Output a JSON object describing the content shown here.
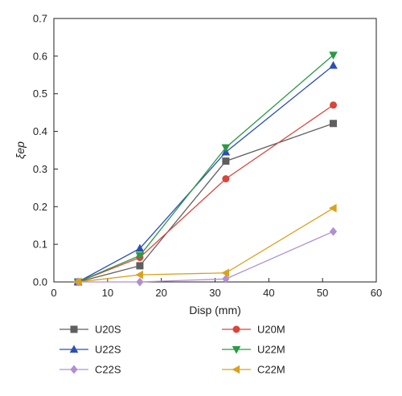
{
  "chart_data": {
    "type": "line",
    "xlabel": "Disp (mm)",
    "ylabel": "ξep",
    "xlim": [
      0,
      60
    ],
    "ylim": [
      0,
      0.7
    ],
    "xticks": [
      "0",
      "10",
      "20",
      "30",
      "40",
      "50",
      "60"
    ],
    "yticks": [
      "0.0",
      "0.1",
      "0.2",
      "0.3",
      "0.4",
      "0.5",
      "0.6",
      "0.7"
    ],
    "grid": false,
    "legend_position": "bottom",
    "series": [
      {
        "name": "U20S",
        "color": "#5f5f5f",
        "marker": "square",
        "x": [
          4.5,
          16,
          32,
          52
        ],
        "y": [
          0.0,
          0.043,
          0.321,
          0.421
        ]
      },
      {
        "name": "U20M",
        "color": "#d9453a",
        "marker": "circle",
        "x": [
          4.5,
          16,
          32,
          52
        ],
        "y": [
          0.0,
          0.065,
          0.274,
          0.47
        ]
      },
      {
        "name": "U22S",
        "color": "#2d4fb2",
        "marker": "triangle-up",
        "x": [
          4.5,
          16,
          32,
          52
        ],
        "y": [
          0.0,
          0.089,
          0.345,
          0.575
        ]
      },
      {
        "name": "U22M",
        "color": "#2a9a45",
        "marker": "triangle-down",
        "x": [
          4.5,
          16,
          32,
          52
        ],
        "y": [
          0.0,
          0.07,
          0.357,
          0.603
        ]
      },
      {
        "name": "C22S",
        "color": "#b090d0",
        "marker": "diamond",
        "x": [
          4.5,
          16,
          32,
          52
        ],
        "y": [
          0.0,
          0.0,
          0.008,
          0.134
        ]
      },
      {
        "name": "C22M",
        "color": "#d9a21a",
        "marker": "triangle-left",
        "x": [
          4.5,
          16,
          32,
          52
        ],
        "y": [
          0.0,
          0.019,
          0.024,
          0.196
        ]
      }
    ]
  }
}
